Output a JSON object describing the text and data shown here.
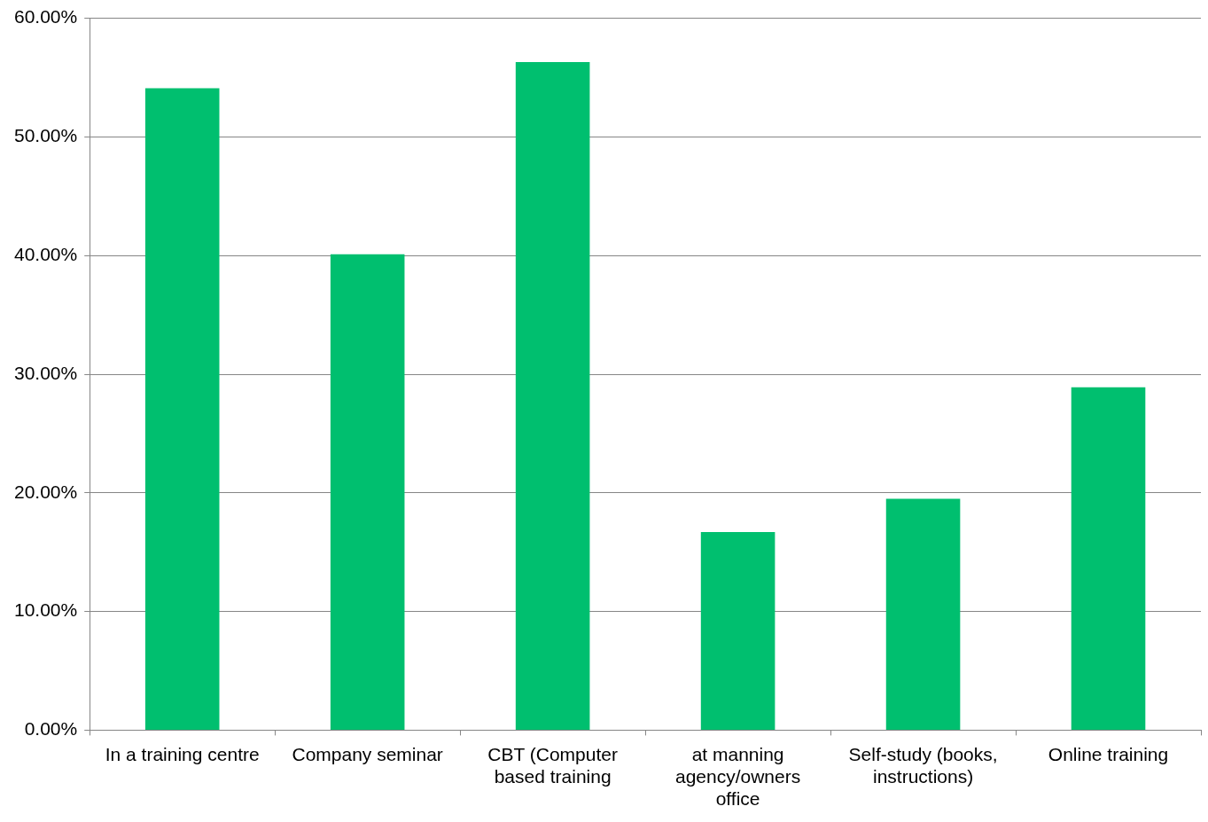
{
  "chart_data": {
    "type": "bar",
    "categories": [
      "In a training centre",
      "Company seminar",
      "CBT (Computer based training",
      "at manning agency/owners office",
      "Self-study (books, instructions)",
      "Online training"
    ],
    "values": [
      54.1,
      40.1,
      56.3,
      16.7,
      19.5,
      28.9
    ],
    "color": "#00bf6f",
    "ylim": [
      0,
      60
    ],
    "yticks": [
      {
        "value": 0,
        "label": "0.00%"
      },
      {
        "value": 10,
        "label": "10.00%"
      },
      {
        "value": 20,
        "label": "20.00%"
      },
      {
        "value": 30,
        "label": "30.00%"
      },
      {
        "value": 40,
        "label": "40.00%"
      },
      {
        "value": 50,
        "label": "50.00%"
      },
      {
        "value": 60,
        "label": "60.00%"
      }
    ],
    "grid": "y",
    "legend": false
  }
}
